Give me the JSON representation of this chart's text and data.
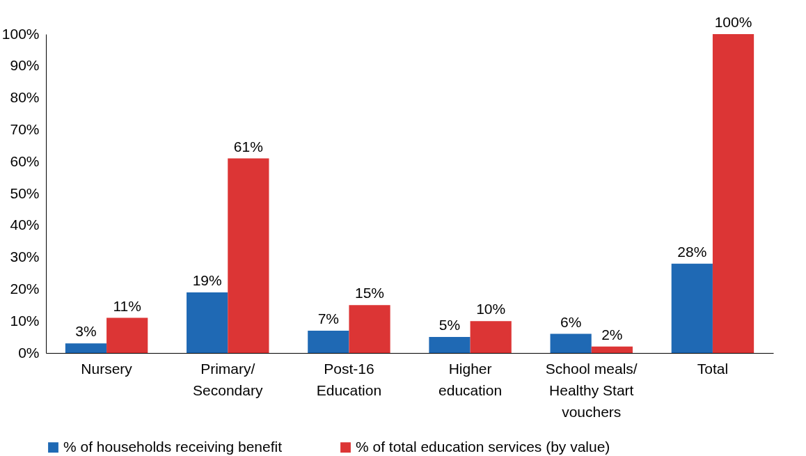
{
  "chart_data": {
    "type": "bar",
    "categories": [
      "Nursery",
      "Primary/\nSecondary",
      "Post-16\nEducation",
      "Higher\neducation",
      "School meals/\nHealthy Start\nvouchers",
      "Total"
    ],
    "series": [
      {
        "name": "% of households receiving benefit",
        "color": "#1f69b4",
        "values": [
          3,
          19,
          7,
          5,
          6,
          28
        ],
        "value_labels": [
          "3%",
          "19%",
          "7%",
          "5%",
          "6%",
          "28%"
        ]
      },
      {
        "name": "% of total education services (by value)",
        "color": "#dc3535",
        "values": [
          11,
          61,
          15,
          10,
          2,
          100
        ],
        "value_labels": [
          "11%",
          "61%",
          "15%",
          "10%",
          "2%",
          "100%"
        ]
      }
    ],
    "ylim": [
      0,
      100
    ],
    "yticks": [
      {
        "value": 0,
        "label": "0%"
      },
      {
        "value": 10,
        "label": "10%"
      },
      {
        "value": 20,
        "label": "20%"
      },
      {
        "value": 30,
        "label": "30%"
      },
      {
        "value": 40,
        "label": "40%"
      },
      {
        "value": 50,
        "label": "50%"
      },
      {
        "value": 60,
        "label": "60%"
      },
      {
        "value": 70,
        "label": "70%"
      },
      {
        "value": 80,
        "label": "80%"
      },
      {
        "value": 90,
        "label": "90%"
      },
      {
        "value": 100,
        "label": "100%"
      }
    ],
    "grid": false,
    "legend": "bottom"
  }
}
